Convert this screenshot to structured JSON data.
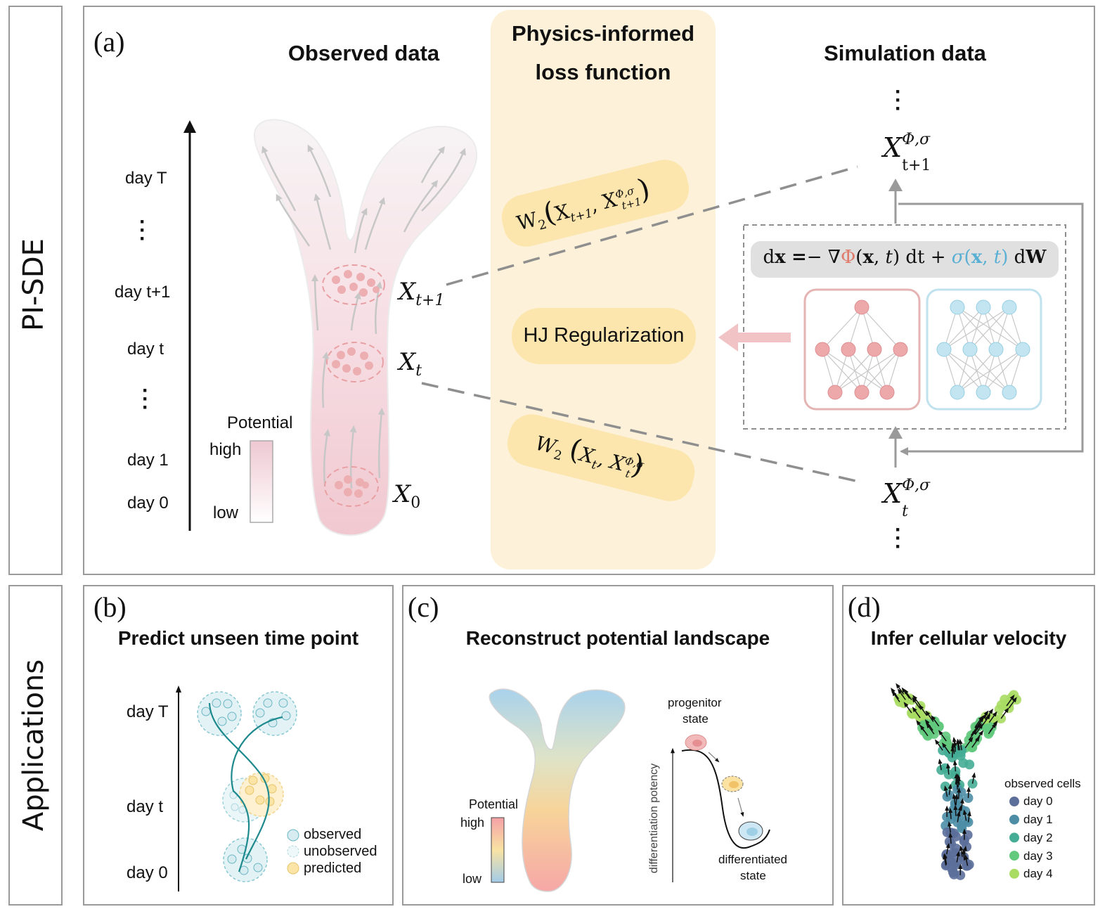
{
  "side_labels": {
    "top": "PI-SDE",
    "bottom": "Applications"
  },
  "panel_a": {
    "letter": "(a)",
    "observed_title": "Observed data",
    "loss_title_line1": "Physics-informed",
    "loss_title_line2": "loss function",
    "simulation_title": "Simulation data",
    "days": [
      "day T",
      "day t+1",
      "day t",
      "day 1",
      "day 0"
    ],
    "legend": {
      "title": "Potential",
      "high": "high",
      "low": "low"
    },
    "x_labels": [
      "X_{t+1}",
      "X_t",
      "X_0"
    ],
    "loss_terms": [
      "W₂(X_{t+1}, X_{t+1}^{Φ,σ})",
      "HJ Regularization",
      "W₂(X_t, X_t^{Φ,σ})"
    ],
    "sim_labels": [
      "X_{t+1}^{Φ,σ}",
      "X_t^{Φ,σ}"
    ],
    "equation": "dx = − ∇Φ(x, t) dt + σ(x, t) dW",
    "colors": {
      "potential_net": "#e9a3a6",
      "sigma_net": "#a9d8ea",
      "loss_bg": "#fdf2d9",
      "pill": "#fce6ad"
    }
  },
  "panel_b": {
    "letter": "(b)",
    "title": "Predict unseen time point",
    "days": [
      "day T",
      "day t",
      "day 0"
    ],
    "legend": [
      "observed",
      "unobserved",
      "predicted"
    ]
  },
  "panel_c": {
    "letter": "(c)",
    "title": "Reconstruct potential landscape",
    "legend": {
      "title": "Potential",
      "high": "high",
      "low": "low"
    },
    "axis_label": "differentiation potency",
    "progenitor": [
      "progenitor",
      "state"
    ],
    "differentiated": [
      "differentiated",
      "state"
    ]
  },
  "panel_d": {
    "letter": "(d)",
    "title": "Infer cellular velocity",
    "legend_title": "observed cells",
    "legend": [
      {
        "label": "day 0",
        "color": "#5c6f9b"
      },
      {
        "label": "day 1",
        "color": "#4d8ea6"
      },
      {
        "label": "day 2",
        "color": "#45ad95"
      },
      {
        "label": "day 3",
        "color": "#62c97d"
      },
      {
        "label": "day 4",
        "color": "#a9dc63"
      }
    ]
  }
}
